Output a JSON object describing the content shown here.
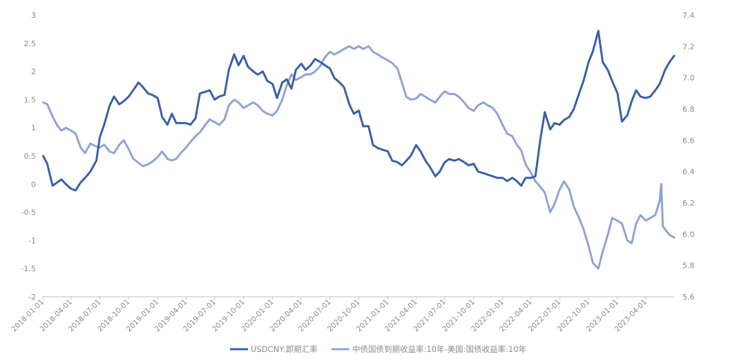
{
  "chart_data": {
    "type": "line",
    "title": "",
    "xlabel": "",
    "ylabel_left": "",
    "ylabel_right": "",
    "x_ticks": [
      "2018-01-01",
      "2018-04-01",
      "2018-07-01",
      "2018-10-01",
      "2019-01-01",
      "2019-04-01",
      "2019-07-01",
      "2019-10-01",
      "2020-01-01",
      "2020-04-01",
      "2020-07-01",
      "2020-10-01",
      "2021-01-01",
      "2021-04-01",
      "2021-07-01",
      "2021-10-01",
      "2022-01-01",
      "2022-04-01",
      "2022-07-01",
      "2022-10-01",
      "2023-01-01",
      "2023-04-01"
    ],
    "x_range": [
      "2018-01-01",
      "2023-06-30"
    ],
    "y_left": {
      "min": -2,
      "max": 3,
      "ticks": [
        "-2",
        "-1.5",
        "-1",
        "-0.5",
        "0",
        "0.5",
        "1",
        "1.5",
        "2",
        "2.5",
        "3"
      ]
    },
    "y_right": {
      "min": 5.6,
      "max": 7.4,
      "ticks": [
        "5.6",
        "5.8",
        "6.0",
        "6.2",
        "6.4",
        "6.6",
        "6.8",
        "7.0",
        "7.2",
        "7.4"
      ]
    },
    "legend_position": "bottom",
    "series": [
      {
        "name": "USDCNY:即期汇率",
        "axis": "right",
        "color": "#3a5ea8",
        "points": [
          [
            "2018-01-02",
            6.5
          ],
          [
            "2018-01-15",
            6.45
          ],
          [
            "2018-02-01",
            6.31
          ],
          [
            "2018-02-15",
            6.33
          ],
          [
            "2018-03-01",
            6.35
          ],
          [
            "2018-03-15",
            6.32
          ],
          [
            "2018-04-01",
            6.29
          ],
          [
            "2018-04-15",
            6.28
          ],
          [
            "2018-05-01",
            6.33
          ],
          [
            "2018-05-15",
            6.36
          ],
          [
            "2018-06-01",
            6.4
          ],
          [
            "2018-06-20",
            6.47
          ],
          [
            "2018-07-01",
            6.62
          ],
          [
            "2018-07-15",
            6.7
          ],
          [
            "2018-08-01",
            6.82
          ],
          [
            "2018-08-15",
            6.88
          ],
          [
            "2018-09-01",
            6.83
          ],
          [
            "2018-09-15",
            6.85
          ],
          [
            "2018-10-01",
            6.88
          ],
          [
            "2018-10-15",
            6.92
          ],
          [
            "2018-11-01",
            6.97
          ],
          [
            "2018-11-15",
            6.94
          ],
          [
            "2018-12-01",
            6.9
          ],
          [
            "2018-12-15",
            6.89
          ],
          [
            "2019-01-01",
            6.87
          ],
          [
            "2019-01-15",
            6.75
          ],
          [
            "2019-02-01",
            6.7
          ],
          [
            "2019-02-15",
            6.77
          ],
          [
            "2019-03-01",
            6.71
          ],
          [
            "2019-03-15",
            6.71
          ],
          [
            "2019-04-01",
            6.71
          ],
          [
            "2019-04-15",
            6.7
          ],
          [
            "2019-05-01",
            6.74
          ],
          [
            "2019-05-15",
            6.9
          ],
          [
            "2019-06-01",
            6.91
          ],
          [
            "2019-06-15",
            6.92
          ],
          [
            "2019-07-01",
            6.86
          ],
          [
            "2019-07-15",
            6.88
          ],
          [
            "2019-08-01",
            6.89
          ],
          [
            "2019-08-15",
            7.05
          ],
          [
            "2019-09-01",
            7.15
          ],
          [
            "2019-09-15",
            7.08
          ],
          [
            "2019-10-01",
            7.14
          ],
          [
            "2019-10-15",
            7.07
          ],
          [
            "2019-11-01",
            7.04
          ],
          [
            "2019-11-15",
            7.02
          ],
          [
            "2019-12-01",
            7.04
          ],
          [
            "2019-12-15",
            6.98
          ],
          [
            "2020-01-01",
            6.96
          ],
          [
            "2020-01-15",
            6.87
          ],
          [
            "2020-02-01",
            6.97
          ],
          [
            "2020-02-15",
            6.99
          ],
          [
            "2020-03-01",
            6.93
          ],
          [
            "2020-03-15",
            7.05
          ],
          [
            "2020-04-01",
            7.09
          ],
          [
            "2020-04-15",
            7.05
          ],
          [
            "2020-05-01",
            7.08
          ],
          [
            "2020-05-15",
            7.12
          ],
          [
            "2020-06-01",
            7.1
          ],
          [
            "2020-06-15",
            7.08
          ],
          [
            "2020-07-01",
            7.06
          ],
          [
            "2020-07-15",
            7.0
          ],
          [
            "2020-08-01",
            6.97
          ],
          [
            "2020-08-15",
            6.94
          ],
          [
            "2020-09-01",
            6.83
          ],
          [
            "2020-09-15",
            6.77
          ],
          [
            "2020-10-01",
            6.79
          ],
          [
            "2020-10-15",
            6.69
          ],
          [
            "2020-11-01",
            6.69
          ],
          [
            "2020-11-15",
            6.57
          ],
          [
            "2020-12-01",
            6.55
          ],
          [
            "2020-12-15",
            6.54
          ],
          [
            "2021-01-01",
            6.53
          ],
          [
            "2021-01-15",
            6.47
          ],
          [
            "2021-02-01",
            6.46
          ],
          [
            "2021-02-15",
            6.44
          ],
          [
            "2021-03-01",
            6.47
          ],
          [
            "2021-03-15",
            6.5
          ],
          [
            "2021-04-01",
            6.57
          ],
          [
            "2021-04-15",
            6.53
          ],
          [
            "2021-05-01",
            6.47
          ],
          [
            "2021-05-15",
            6.43
          ],
          [
            "2021-06-01",
            6.37
          ],
          [
            "2021-06-15",
            6.4
          ],
          [
            "2021-07-01",
            6.46
          ],
          [
            "2021-07-15",
            6.48
          ],
          [
            "2021-08-01",
            6.47
          ],
          [
            "2021-08-15",
            6.48
          ],
          [
            "2021-09-01",
            6.46
          ],
          [
            "2021-09-15",
            6.44
          ],
          [
            "2021-10-01",
            6.45
          ],
          [
            "2021-10-15",
            6.4
          ],
          [
            "2021-11-01",
            6.39
          ],
          [
            "2021-11-15",
            6.38
          ],
          [
            "2021-12-01",
            6.37
          ],
          [
            "2021-12-15",
            6.36
          ],
          [
            "2022-01-01",
            6.36
          ],
          [
            "2022-01-15",
            6.34
          ],
          [
            "2022-02-01",
            6.36
          ],
          [
            "2022-02-15",
            6.34
          ],
          [
            "2022-03-01",
            6.31
          ],
          [
            "2022-03-15",
            6.36
          ],
          [
            "2022-04-01",
            6.36
          ],
          [
            "2022-04-15",
            6.37
          ],
          [
            "2022-05-01",
            6.61
          ],
          [
            "2022-05-15",
            6.78
          ],
          [
            "2022-06-01",
            6.67
          ],
          [
            "2022-06-15",
            6.71
          ],
          [
            "2022-07-01",
            6.7
          ],
          [
            "2022-07-15",
            6.73
          ],
          [
            "2022-08-01",
            6.75
          ],
          [
            "2022-08-15",
            6.8
          ],
          [
            "2022-09-01",
            6.9
          ],
          [
            "2022-09-15",
            6.98
          ],
          [
            "2022-10-01",
            7.1
          ],
          [
            "2022-10-15",
            7.17
          ],
          [
            "2022-11-01",
            7.3
          ],
          [
            "2022-11-15",
            7.1
          ],
          [
            "2022-12-01",
            7.05
          ],
          [
            "2022-12-15",
            6.98
          ],
          [
            "2023-01-01",
            6.9
          ],
          [
            "2023-01-15",
            6.72
          ],
          [
            "2023-02-01",
            6.76
          ],
          [
            "2023-02-15",
            6.85
          ],
          [
            "2023-03-01",
            6.92
          ],
          [
            "2023-03-15",
            6.88
          ],
          [
            "2023-04-01",
            6.87
          ],
          [
            "2023-04-15",
            6.88
          ],
          [
            "2023-05-01",
            6.92
          ],
          [
            "2023-05-15",
            6.96
          ],
          [
            "2023-06-01",
            7.05
          ],
          [
            "2023-06-15",
            7.1
          ],
          [
            "2023-06-30",
            7.14
          ]
        ]
      },
      {
        "name": "中债国债到期收益率:10年-美国:国债收益率:10年",
        "axis": "left",
        "color": "#8fa3d4",
        "points": [
          [
            "2018-01-02",
            1.45
          ],
          [
            "2018-01-15",
            1.42
          ],
          [
            "2018-02-01",
            1.2
          ],
          [
            "2018-02-15",
            1.05
          ],
          [
            "2018-03-01",
            0.95
          ],
          [
            "2018-03-15",
            1.0
          ],
          [
            "2018-04-01",
            0.95
          ],
          [
            "2018-04-15",
            0.9
          ],
          [
            "2018-05-01",
            0.65
          ],
          [
            "2018-05-15",
            0.55
          ],
          [
            "2018-06-01",
            0.72
          ],
          [
            "2018-06-15",
            0.68
          ],
          [
            "2018-07-01",
            0.65
          ],
          [
            "2018-07-15",
            0.7
          ],
          [
            "2018-08-01",
            0.58
          ],
          [
            "2018-08-15",
            0.55
          ],
          [
            "2018-09-01",
            0.7
          ],
          [
            "2018-09-15",
            0.78
          ],
          [
            "2018-10-01",
            0.62
          ],
          [
            "2018-10-15",
            0.45
          ],
          [
            "2018-11-01",
            0.38
          ],
          [
            "2018-11-15",
            0.32
          ],
          [
            "2018-12-01",
            0.35
          ],
          [
            "2018-12-15",
            0.4
          ],
          [
            "2019-01-01",
            0.48
          ],
          [
            "2019-01-15",
            0.58
          ],
          [
            "2019-02-01",
            0.45
          ],
          [
            "2019-02-15",
            0.42
          ],
          [
            "2019-03-01",
            0.45
          ],
          [
            "2019-03-15",
            0.55
          ],
          [
            "2019-04-01",
            0.65
          ],
          [
            "2019-04-15",
            0.75
          ],
          [
            "2019-05-01",
            0.85
          ],
          [
            "2019-05-15",
            0.92
          ],
          [
            "2019-06-01",
            1.05
          ],
          [
            "2019-06-15",
            1.15
          ],
          [
            "2019-07-01",
            1.1
          ],
          [
            "2019-07-15",
            1.05
          ],
          [
            "2019-08-01",
            1.15
          ],
          [
            "2019-08-15",
            1.4
          ],
          [
            "2019-09-01",
            1.5
          ],
          [
            "2019-09-15",
            1.45
          ],
          [
            "2019-10-01",
            1.35
          ],
          [
            "2019-10-15",
            1.4
          ],
          [
            "2019-11-01",
            1.45
          ],
          [
            "2019-11-15",
            1.4
          ],
          [
            "2019-12-01",
            1.3
          ],
          [
            "2019-12-15",
            1.25
          ],
          [
            "2020-01-01",
            1.22
          ],
          [
            "2020-01-15",
            1.3
          ],
          [
            "2020-02-01",
            1.5
          ],
          [
            "2020-02-15",
            1.75
          ],
          [
            "2020-03-01",
            1.95
          ],
          [
            "2020-03-15",
            1.85
          ],
          [
            "2020-04-01",
            1.9
          ],
          [
            "2020-04-15",
            1.95
          ],
          [
            "2020-05-01",
            1.95
          ],
          [
            "2020-05-15",
            2.0
          ],
          [
            "2020-06-01",
            2.1
          ],
          [
            "2020-06-15",
            2.25
          ],
          [
            "2020-07-01",
            2.35
          ],
          [
            "2020-07-15",
            2.3
          ],
          [
            "2020-08-01",
            2.35
          ],
          [
            "2020-08-15",
            2.4
          ],
          [
            "2020-09-01",
            2.45
          ],
          [
            "2020-09-15",
            2.4
          ],
          [
            "2020-10-01",
            2.45
          ],
          [
            "2020-10-15",
            2.4
          ],
          [
            "2020-11-01",
            2.45
          ],
          [
            "2020-11-15",
            2.35
          ],
          [
            "2020-12-01",
            2.3
          ],
          [
            "2020-12-15",
            2.25
          ],
          [
            "2021-01-01",
            2.2
          ],
          [
            "2021-01-15",
            2.15
          ],
          [
            "2021-02-01",
            2.05
          ],
          [
            "2021-02-15",
            1.8
          ],
          [
            "2021-03-01",
            1.55
          ],
          [
            "2021-03-15",
            1.5
          ],
          [
            "2021-04-01",
            1.52
          ],
          [
            "2021-04-15",
            1.6
          ],
          [
            "2021-05-01",
            1.55
          ],
          [
            "2021-05-15",
            1.5
          ],
          [
            "2021-06-01",
            1.45
          ],
          [
            "2021-06-15",
            1.55
          ],
          [
            "2021-07-01",
            1.65
          ],
          [
            "2021-07-15",
            1.6
          ],
          [
            "2021-08-01",
            1.6
          ],
          [
            "2021-08-15",
            1.55
          ],
          [
            "2021-09-01",
            1.45
          ],
          [
            "2021-09-15",
            1.35
          ],
          [
            "2021-10-01",
            1.3
          ],
          [
            "2021-10-15",
            1.4
          ],
          [
            "2021-11-01",
            1.45
          ],
          [
            "2021-11-15",
            1.4
          ],
          [
            "2021-12-01",
            1.35
          ],
          [
            "2021-12-15",
            1.25
          ],
          [
            "2022-01-01",
            1.05
          ],
          [
            "2022-01-15",
            0.9
          ],
          [
            "2022-02-01",
            0.85
          ],
          [
            "2022-02-15",
            0.7
          ],
          [
            "2022-03-01",
            0.6
          ],
          [
            "2022-03-15",
            0.35
          ],
          [
            "2022-04-01",
            0.2
          ],
          [
            "2022-04-15",
            0.05
          ],
          [
            "2022-05-01",
            -0.05
          ],
          [
            "2022-05-15",
            -0.15
          ],
          [
            "2022-06-01",
            -0.5
          ],
          [
            "2022-06-15",
            -0.35
          ],
          [
            "2022-07-01",
            -0.1
          ],
          [
            "2022-07-15",
            0.05
          ],
          [
            "2022-08-01",
            -0.1
          ],
          [
            "2022-08-15",
            -0.4
          ],
          [
            "2022-09-01",
            -0.6
          ],
          [
            "2022-09-15",
            -0.8
          ],
          [
            "2022-10-01",
            -1.1
          ],
          [
            "2022-10-15",
            -1.4
          ],
          [
            "2022-11-01",
            -1.5
          ],
          [
            "2022-11-15",
            -1.2
          ],
          [
            "2022-12-01",
            -0.9
          ],
          [
            "2022-12-15",
            -0.6
          ],
          [
            "2023-01-01",
            -0.65
          ],
          [
            "2023-01-15",
            -0.7
          ],
          [
            "2023-02-01",
            -1.0
          ],
          [
            "2023-02-15",
            -1.05
          ],
          [
            "2023-03-01",
            -0.7
          ],
          [
            "2023-03-15",
            -0.55
          ],
          [
            "2023-04-01",
            -0.65
          ],
          [
            "2023-04-15",
            -0.6
          ],
          [
            "2023-05-01",
            -0.55
          ],
          [
            "2023-05-15",
            -0.3
          ],
          [
            "2023-05-20",
            0.0
          ],
          [
            "2023-05-25",
            -0.75
          ],
          [
            "2023-06-01",
            -0.8
          ],
          [
            "2023-06-15",
            -0.9
          ],
          [
            "2023-06-30",
            -0.95
          ]
        ]
      }
    ]
  }
}
